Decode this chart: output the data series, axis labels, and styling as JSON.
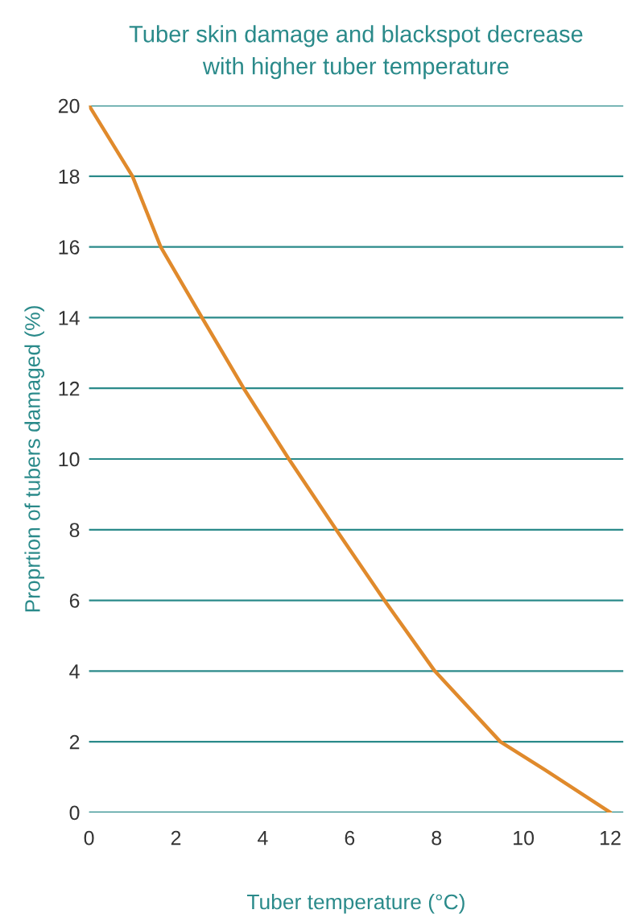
{
  "chart_data": {
    "type": "line",
    "title": "Tuber skin damage and blackspot decrease\nwith higher tuber temperature",
    "xlabel": "Tuber temperature (°C)",
    "ylabel": "Proprtion of tubers damaged (%)",
    "x": [
      0,
      1,
      1.65,
      2.6,
      3.56,
      4.6,
      5.69,
      6.8,
      7.96,
      9.47,
      10.5,
      12
    ],
    "series": [
      {
        "color": "#e08a2c",
        "values": [
          20,
          18,
          16,
          14,
          12,
          10,
          8,
          6,
          4,
          2,
          1.2,
          0
        ]
      }
    ],
    "xlim": [
      0,
      12.3
    ],
    "ylim": [
      0,
      20
    ],
    "xticks": [
      0,
      2,
      4,
      6,
      8,
      10,
      12
    ],
    "yticks": [
      0,
      2,
      4,
      6,
      8,
      10,
      12,
      14,
      16,
      18,
      20
    ],
    "grid": "y",
    "legend": false,
    "marker": "none",
    "line_style": "solid"
  }
}
